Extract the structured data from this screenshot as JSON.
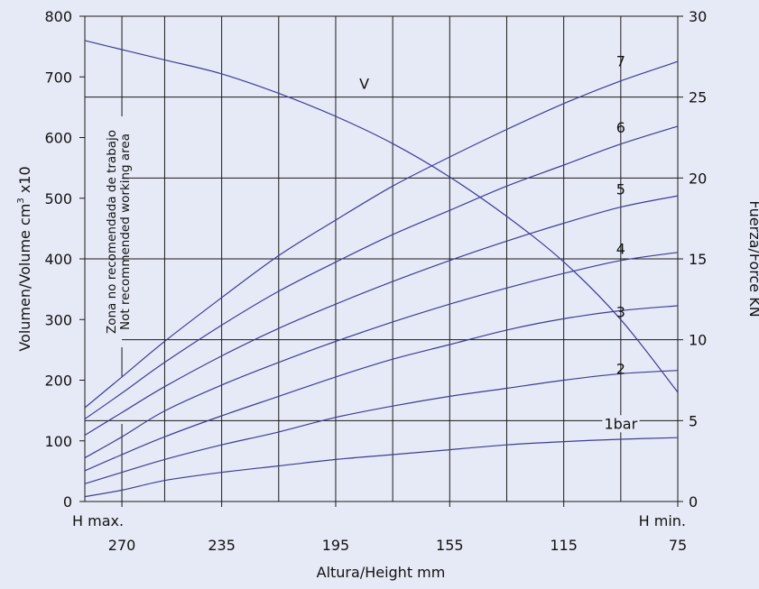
{
  "chart_data": {
    "type": "line",
    "xlabel": "Altura/Height mm",
    "ylabel_left_parts": [
      "Volumen/Volume cm",
      "3",
      " x10"
    ],
    "ylabel_right": "Fuerza/Force KN",
    "x_ticks": [
      270,
      235,
      195,
      155,
      115,
      75
    ],
    "x_tick_labels": [
      "270",
      "235",
      "195",
      "155",
      "115",
      "75"
    ],
    "x_end_labels": {
      "left": "H max.",
      "right": "H min."
    },
    "xlim": [
      283,
      75
    ],
    "x_vertical_lines": [
      270,
      255,
      235,
      215,
      195,
      175,
      155,
      135,
      115,
      95
    ],
    "y_left_ticks": [
      0,
      100,
      200,
      300,
      400,
      500,
      600,
      700,
      800
    ],
    "y_left_tick_labels": [
      "0",
      "100",
      "200",
      "300",
      "400",
      "500",
      "600",
      "700",
      "800"
    ],
    "ylim_left": [
      0,
      800
    ],
    "y_right_ticks": [
      0,
      5,
      10,
      15,
      20,
      25,
      30
    ],
    "y_right_tick_labels": [
      "0",
      "5",
      "10",
      "15",
      "20",
      "25",
      "30"
    ],
    "ylim_right": [
      0,
      30
    ],
    "zone_annotation": [
      "Zona no recomendada de trabajo",
      "Not recommended working area"
    ],
    "series": [
      {
        "name": "V",
        "axis": "left",
        "label": "V",
        "x": [
          283,
          270,
          255,
          235,
          215,
          195,
          175,
          155,
          135,
          115,
          95,
          75
        ],
        "values": [
          760,
          745,
          728,
          705,
          673,
          635,
          590,
          535,
          470,
          395,
          300,
          180
        ],
        "label_at": [
          185,
          680
        ]
      },
      {
        "name": "7",
        "axis": "right",
        "label": "7",
        "x": [
          283,
          270,
          255,
          235,
          215,
          195,
          175,
          155,
          135,
          115,
          95,
          75
        ],
        "values": [
          5.8,
          7.7,
          9.9,
          12.6,
          15.2,
          17.4,
          19.5,
          21.3,
          23.0,
          24.6,
          26.0,
          27.2
        ],
        "label_at": [
          95,
          26.9
        ]
      },
      {
        "name": "6",
        "axis": "right",
        "label": "6",
        "x": [
          283,
          270,
          255,
          235,
          215,
          195,
          175,
          155,
          135,
          115,
          95,
          75
        ],
        "values": [
          5.1,
          6.7,
          8.6,
          10.9,
          13.0,
          14.8,
          16.5,
          18.0,
          19.5,
          20.8,
          22.1,
          23.2
        ],
        "label_at": [
          95,
          22.8
        ]
      },
      {
        "name": "5",
        "axis": "right",
        "label": "5",
        "x": [
          283,
          270,
          255,
          235,
          215,
          195,
          175,
          155,
          135,
          115,
          95,
          75
        ],
        "values": [
          4.1,
          5.5,
          7.1,
          9.0,
          10.7,
          12.2,
          13.6,
          14.9,
          16.1,
          17.2,
          18.2,
          18.9
        ],
        "label_at": [
          95,
          19.0
        ]
      },
      {
        "name": "4",
        "axis": "right",
        "label": "4",
        "x": [
          283,
          270,
          255,
          235,
          215,
          195,
          175,
          155,
          135,
          115,
          95,
          75
        ],
        "values": [
          2.7,
          4.0,
          5.6,
          7.2,
          8.6,
          9.9,
          11.1,
          12.2,
          13.2,
          14.1,
          14.9,
          15.4
        ],
        "label_at": [
          95,
          15.3
        ]
      },
      {
        "name": "3",
        "axis": "right",
        "label": "3",
        "x": [
          283,
          270,
          255,
          235,
          215,
          195,
          175,
          155,
          135,
          115,
          95,
          75
        ],
        "values": [
          1.9,
          2.9,
          4.0,
          5.3,
          6.5,
          7.7,
          8.8,
          9.7,
          10.6,
          11.3,
          11.8,
          12.1
        ],
        "label_at": [
          95,
          11.4
        ]
      },
      {
        "name": "2",
        "axis": "right",
        "label": "2",
        "x": [
          283,
          270,
          255,
          235,
          215,
          195,
          175,
          155,
          135,
          115,
          95,
          75
        ],
        "values": [
          1.1,
          1.8,
          2.6,
          3.5,
          4.3,
          5.2,
          5.9,
          6.5,
          7.0,
          7.5,
          7.9,
          8.1
        ],
        "label_at": [
          95,
          7.9
        ]
      },
      {
        "name": "1bar",
        "axis": "right",
        "label": "1bar",
        "x": [
          283,
          270,
          255,
          235,
          215,
          195,
          175,
          155,
          135,
          115,
          95,
          75
        ],
        "values": [
          0.3,
          0.7,
          1.3,
          1.8,
          2.2,
          2.6,
          2.9,
          3.2,
          3.5,
          3.7,
          3.85,
          3.95
        ],
        "label_at": [
          95,
          4.5
        ]
      }
    ],
    "grid": true,
    "legend": "none"
  }
}
